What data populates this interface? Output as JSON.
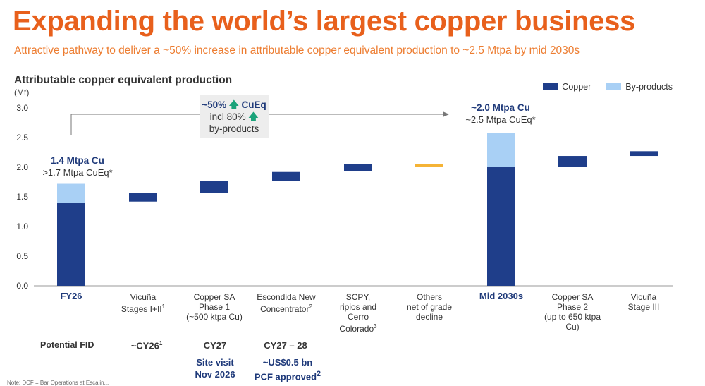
{
  "header": {
    "title": "Expanding the world’s largest copper business",
    "subtitle": "Attractive pathway to deliver a ~50% increase in attributable copper equivalent production to ~2.5 Mtpa by mid 2030s"
  },
  "colors": {
    "copper": "#1F3E8A",
    "byproducts": "#A9D0F5",
    "decline": "#F5B335",
    "title": "#E8601C"
  },
  "callout": {
    "line1": "~50%",
    "line1b": "CuEq",
    "line2": "incl 80%",
    "line3": "by-products",
    "arrow_icon": "up-arrow-icon"
  },
  "annotations": {
    "fy26": {
      "bold": "1.4 Mtpa Cu",
      "regular": ">1.7 Mtpa CuEq*"
    },
    "mid2030s": {
      "bold": "~2.0 Mtpa Cu",
      "regular": "~2.5 Mtpa CuEq*"
    }
  },
  "fid": {
    "label": "Potential FID",
    "items": [
      {
        "text": "~CY26",
        "sup": "1"
      },
      {
        "text": "CY27",
        "sub": [
          "Site visit",
          "Nov 2026"
        ]
      },
      {
        "text": "CY27 – 28",
        "sub": [
          "~US$0.5 bn",
          "PCF approved"
        ],
        "sub_sup": "2"
      }
    ]
  },
  "footnote": "Note: DCF = Bar Operations at Escalin...",
  "chart_data": {
    "type": "bar",
    "title": "Attributable copper equivalent production",
    "ylabel": "(Mt)",
    "ylim": [
      0,
      3.0
    ],
    "yticks": [
      "0.0",
      "0.5",
      "1.0",
      "1.5",
      "2.0",
      "2.5",
      "3.0"
    ],
    "legend": [
      "Copper",
      "By-products"
    ],
    "legend_position": "top-right",
    "categories": [
      {
        "lines": [
          "FY26"
        ],
        "bold": true
      },
      {
        "lines": [
          "Vicuña",
          "Stages I+II"
        ],
        "sup": "1"
      },
      {
        "lines": [
          "Copper SA",
          "Phase 1",
          "(~500 ktpa Cu)"
        ]
      },
      {
        "lines": [
          "Escondida New",
          "Concentrator"
        ],
        "sup": "2"
      },
      {
        "lines": [
          "SCPY,",
          "ripios and",
          "Cerro",
          "Colorado"
        ],
        "sup": "3"
      },
      {
        "lines": [
          "Others",
          "net of grade",
          "decline"
        ]
      },
      {
        "lines": [
          "Mid 2030s"
        ],
        "bold": true
      },
      {
        "lines": [
          "Copper SA",
          "Phase 2",
          "(up to 650 ktpa",
          "Cu)"
        ]
      },
      {
        "lines": [
          "Vicuña",
          "Stage III"
        ]
      }
    ],
    "bars": [
      {
        "kind": "total",
        "copper": 1.4,
        "byproducts": 0.32
      },
      {
        "kind": "float",
        "from": 1.42,
        "to": 1.56
      },
      {
        "kind": "float",
        "from": 1.56,
        "to": 1.77
      },
      {
        "kind": "float",
        "from": 1.77,
        "to": 1.92
      },
      {
        "kind": "float",
        "from": 1.93,
        "to": 2.05
      },
      {
        "kind": "line",
        "value": 2.03
      },
      {
        "kind": "total",
        "copper": 2.0,
        "byproducts": 0.58
      },
      {
        "kind": "float",
        "from": 2.0,
        "to": 2.19
      },
      {
        "kind": "float",
        "from": 2.19,
        "to": 2.27
      }
    ]
  }
}
